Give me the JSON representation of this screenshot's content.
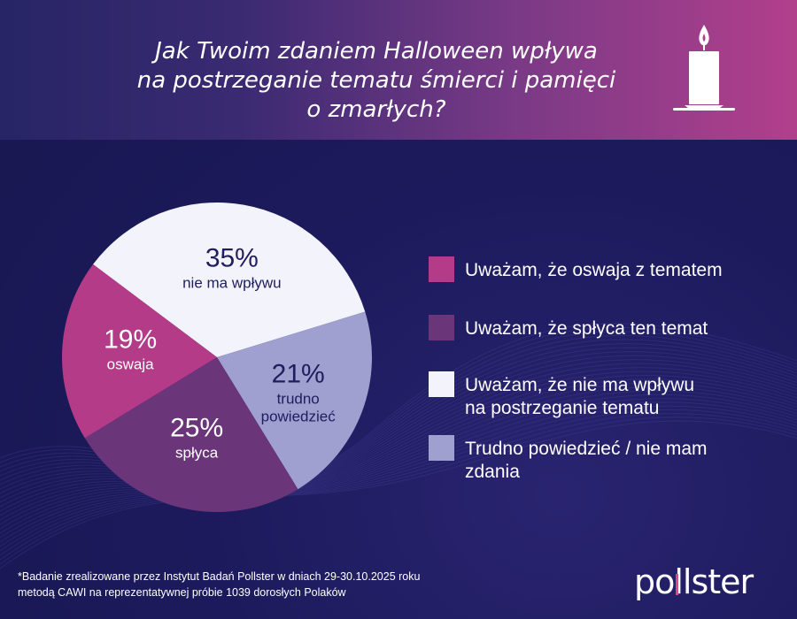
{
  "header": {
    "title": "Jak Twoim zdaniem Halloween wpływa\nna postrzeganie tematu śmierci i pamięci\no zmarłych?",
    "icon": "candle-icon"
  },
  "colors": {
    "background": "#1c1a5c",
    "accent": "#b33b88",
    "oswaja": "#b33b88",
    "splyca": "#6b3579",
    "nie_ma_wplywu": "#f3f3fb",
    "trudno": "#9f9fd0"
  },
  "chart_data": {
    "type": "pie",
    "title": "Jak Twoim zdaniem Halloween wpływa na postrzeganie tematu śmierci i pamięci o zmarłych?",
    "slices": [
      {
        "label": "Uważam, że nie ma wpływu na postrzeganie tematu",
        "value": 35,
        "pct_text": "35%",
        "short_label": "nie ma wpływu",
        "color": "#f3f3fb",
        "text_color": "#1f1d5e"
      },
      {
        "label": "Trudno powiedzieć / nie mam zdania",
        "value": 21,
        "pct_text": "21%",
        "short_label": "trudno\npowiedzieć",
        "color": "#9f9fd0",
        "text_color": "#1f1d5e"
      },
      {
        "label": "Uważam, że spłyca ten temat",
        "value": 25,
        "pct_text": "25%",
        "short_label": "spłyca",
        "color": "#6b3579",
        "text_color": "#ffffff"
      },
      {
        "label": "Uważam, że oswaja z tematem",
        "value": 19,
        "pct_text": "19%",
        "short_label": "oswaja",
        "color": "#b33b88",
        "text_color": "#ffffff"
      }
    ],
    "legend": [
      {
        "label": "Uważam, że oswaja z tematem",
        "color": "#b33b88"
      },
      {
        "label": "Uważam, że spłyca ten temat",
        "color": "#6b3579"
      },
      {
        "label": "Uważam, że nie ma wpływu\nna postrzeganie tematu",
        "color": "#f3f3fb"
      },
      {
        "label": "Trudno powiedzieć / nie mam\nzdania",
        "color": "#9f9fd0"
      }
    ],
    "legend_position": "right"
  },
  "footnote": "*Badanie zrealizowane przez Instytut Badań Pollster w dniach 29-30.10.2025 roku\nmetodą CAWI na reprezentatywnej próbie 1039 dorosłych Polaków",
  "brand": {
    "logo_text": "pollster",
    "logo_mark_color": "#d94a8c"
  }
}
